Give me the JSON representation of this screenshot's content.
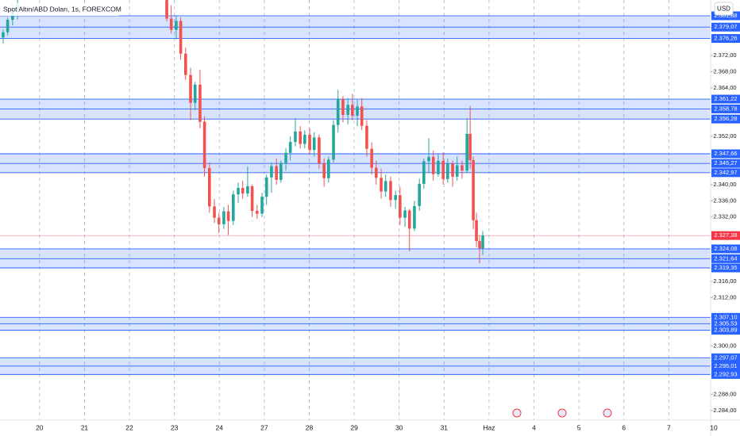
{
  "chart_data": {
    "type": "candlestick",
    "title": "Spot Altın/ABD Doları, 1s, FOREXCOM",
    "currency": "USD",
    "categories": [
      "20",
      "21",
      "22",
      "23",
      "24",
      "27",
      "28",
      "29",
      "30",
      "31",
      "Haz",
      "4",
      "5",
      "6",
      "7",
      "10"
    ],
    "xlim": [
      -0.88,
      14.93
    ],
    "ylim": [
      2281.6,
      2385.8
    ],
    "yticks": [
      {
        "value": 2372,
        "label": "2.372,00"
      },
      {
        "value": 2368,
        "label": "2.368,00"
      },
      {
        "value": 2364,
        "label": "2.364,00"
      },
      {
        "value": 2352,
        "label": "2.352,00"
      },
      {
        "value": 2340,
        "label": "2.340,00"
      },
      {
        "value": 2336,
        "label": "2.336,00"
      },
      {
        "value": 2332,
        "label": "2.332,00"
      },
      {
        "value": 2316,
        "label": "2.316,00"
      },
      {
        "value": 2312,
        "label": "2.312,00"
      },
      {
        "value": 2300,
        "label": "2.300,00"
      },
      {
        "value": 2288,
        "label": "2.288,00"
      },
      {
        "value": 2284,
        "label": "2.284,00"
      }
    ],
    "up_color": "#26a69a",
    "down_color": "#ef5350",
    "grid": true,
    "candles": {
      "x": [
        -0.81,
        -0.71,
        -0.6,
        -0.49,
        2.83,
        2.93,
        3.04,
        3.14,
        3.25,
        3.36,
        3.46,
        3.57,
        3.67,
        3.78,
        3.89,
        3.99,
        4.1,
        4.2,
        4.31,
        4.42,
        4.52,
        4.63,
        4.73,
        4.84,
        4.95,
        5.05,
        5.16,
        5.27,
        5.37,
        5.48,
        5.58,
        5.69,
        5.8,
        5.9,
        6.01,
        6.11,
        6.22,
        6.33,
        6.43,
        6.54,
        6.64,
        6.75,
        6.86,
        6.96,
        7.07,
        7.17,
        7.28,
        7.39,
        7.49,
        7.6,
        7.7,
        7.81,
        7.92,
        8.02,
        8.13,
        8.23,
        8.34,
        8.45,
        8.55,
        8.66,
        8.76,
        8.87,
        8.98,
        9.08,
        9.19,
        9.29,
        9.4,
        9.51,
        9.58,
        9.65,
        9.72,
        9.79,
        9.86
      ],
      "open": [
        2376.5,
        2377.8,
        2380.9,
        2383.6,
        2386.0,
        2381.2,
        2378.4,
        2380.6,
        2372.5,
        2367.2,
        2360.3,
        2364.8,
        2355.6,
        2344.1,
        2334.6,
        2331.8,
        2330.2,
        2333.4,
        2331.0,
        2337.6,
        2339.2,
        2337.8,
        2339.6,
        2333.5,
        2332.8,
        2337.0,
        2341.8,
        2344.6,
        2341.2,
        2345.4,
        2347.9,
        2350.6,
        2353.2,
        2350.1,
        2352.4,
        2348.6,
        2351.7,
        2345.3,
        2341.6,
        2346.2,
        2354.8,
        2361.2,
        2357.3,
        2359.8,
        2357.1,
        2359.4,
        2354.6,
        2348.9,
        2344.2,
        2341.7,
        2338.3,
        2340.9,
        2336.2,
        2337.4,
        2331.8,
        2333.6,
        2329.1,
        2334.7,
        2340.2,
        2345.8,
        2346.9,
        2342.6,
        2345.9,
        2341.4,
        2345.2,
        2342.0,
        2344.8,
        2343.5,
        2352.6,
        2346.1,
        2331.2,
        2326.0,
        2324.2
      ],
      "high": [
        2378.5,
        2381.5,
        2385.0,
        2386.5,
        2388.0,
        2384.5,
        2382.0,
        2381.5,
        2374.0,
        2369.0,
        2365.5,
        2368.5,
        2357.0,
        2345.5,
        2336.5,
        2333.0,
        2334.5,
        2335.0,
        2338.5,
        2340.5,
        2341.0,
        2344.5,
        2340.0,
        2335.0,
        2338.0,
        2342.5,
        2345.5,
        2346.5,
        2346.0,
        2349.0,
        2352.0,
        2356.5,
        2354.5,
        2353.5,
        2354.0,
        2353.0,
        2352.5,
        2346.5,
        2347.0,
        2356.0,
        2363.5,
        2362.0,
        2361.5,
        2362.5,
        2361.0,
        2361.5,
        2356.0,
        2350.5,
        2346.0,
        2344.0,
        2342.5,
        2342.0,
        2338.5,
        2339.5,
        2334.5,
        2334.0,
        2336.0,
        2341.5,
        2346.5,
        2351.5,
        2348.5,
        2347.5,
        2348.0,
        2346.5,
        2346.0,
        2347.0,
        2346.0,
        2356.5,
        2359.5,
        2347.0,
        2333.0,
        2327.5,
        2328.5
      ],
      "low": [
        2375.0,
        2377.0,
        2379.5,
        2381.0,
        2380.5,
        2377.5,
        2376.0,
        2371.0,
        2366.0,
        2356.0,
        2358.5,
        2354.0,
        2342.0,
        2333.0,
        2330.5,
        2328.0,
        2329.0,
        2327.5,
        2330.0,
        2335.5,
        2336.5,
        2337.0,
        2332.0,
        2331.5,
        2332.0,
        2335.0,
        2338.0,
        2340.0,
        2340.5,
        2343.5,
        2346.0,
        2349.5,
        2349.0,
        2349.0,
        2347.5,
        2347.0,
        2344.0,
        2339.5,
        2340.5,
        2345.5,
        2353.0,
        2355.5,
        2355.0,
        2356.0,
        2354.5,
        2353.5,
        2347.0,
        2342.5,
        2340.0,
        2336.5,
        2337.0,
        2334.5,
        2334.0,
        2330.0,
        2329.5,
        2323.5,
        2328.5,
        2333.5,
        2339.0,
        2343.0,
        2341.0,
        2342.0,
        2340.0,
        2340.5,
        2339.5,
        2341.0,
        2341.5,
        2343.0,
        2344.0,
        2329.0,
        2324.5,
        2320.5,
        2322.5
      ],
      "close": [
        2377.8,
        2380.9,
        2383.6,
        2384.8,
        2381.2,
        2378.4,
        2380.6,
        2372.5,
        2367.2,
        2360.3,
        2364.8,
        2355.6,
        2344.1,
        2334.6,
        2331.8,
        2330.2,
        2333.4,
        2331.0,
        2337.6,
        2339.2,
        2337.8,
        2339.6,
        2333.5,
        2332.8,
        2337.0,
        2341.8,
        2344.6,
        2341.2,
        2345.4,
        2347.9,
        2350.6,
        2353.2,
        2350.1,
        2352.4,
        2348.6,
        2351.7,
        2345.3,
        2341.6,
        2346.2,
        2354.8,
        2361.2,
        2357.3,
        2359.8,
        2357.1,
        2359.4,
        2354.6,
        2348.9,
        2344.2,
        2341.7,
        2338.3,
        2340.9,
        2336.2,
        2337.4,
        2331.8,
        2333.6,
        2329.1,
        2334.7,
        2340.2,
        2345.8,
        2346.9,
        2342.6,
        2345.9,
        2341.4,
        2345.2,
        2342.0,
        2344.8,
        2343.5,
        2352.6,
        2346.1,
        2331.2,
        2326.0,
        2324.2,
        2327.4
      ]
    },
    "zone_color": "#2962ff",
    "zones": [
      {
        "lines": [
          {
            "value": 2381.88,
            "label": "2.381,88"
          },
          {
            "value": 2379.07,
            "label": "2.379,07"
          },
          {
            "value": 2376.26,
            "label": "2.376,26"
          }
        ]
      },
      {
        "lines": [
          {
            "value": 2361.22,
            "label": "2.361,22"
          },
          {
            "value": 2358.78,
            "label": "2.358,78"
          },
          {
            "value": 2356.28,
            "label": "2.356,28"
          }
        ]
      },
      {
        "lines": [
          {
            "value": 2347.66,
            "label": "2.347,66"
          },
          {
            "value": 2345.27,
            "label": "2.345,27"
          },
          {
            "value": 2342.97,
            "label": "2.342,97"
          }
        ]
      },
      {
        "lines": [
          {
            "value": 2324.08,
            "label": "2.324,08"
          },
          {
            "value": 2321.64,
            "label": "2.321,64"
          },
          {
            "value": 2319.35,
            "label": "2.319,35"
          }
        ]
      },
      {
        "lines": [
          {
            "value": 2307.1,
            "label": "2.307,10"
          },
          {
            "value": 2305.53,
            "label": "2.305,53"
          },
          {
            "value": 2303.89,
            "label": "2.303,89"
          }
        ]
      },
      {
        "lines": [
          {
            "value": 2297.07,
            "label": "2.297,07"
          },
          {
            "value": 2295.01,
            "label": "2.295,01"
          },
          {
            "value": 2292.93,
            "label": "2.292,93"
          }
        ]
      }
    ],
    "last_price": {
      "value": 2327.38,
      "label": "2.327,38",
      "color": "#f23645"
    }
  }
}
